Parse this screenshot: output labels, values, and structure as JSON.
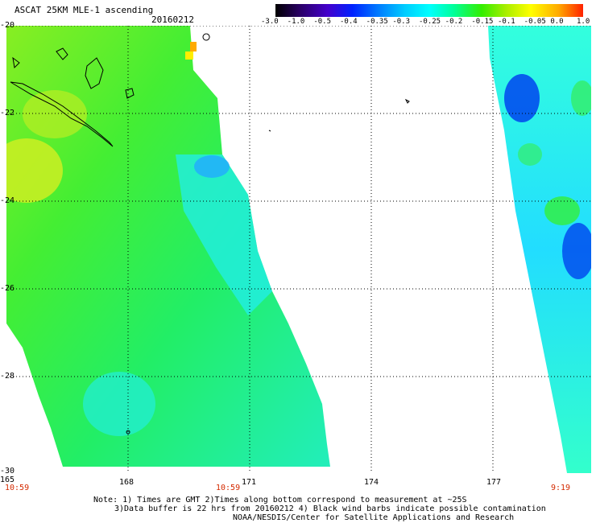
{
  "header": {
    "title": "ASCAT 25KM MLE-1 ascending",
    "date": "20160212"
  },
  "colorbar": {
    "labels": [
      "-3.0",
      "-1.0",
      "-0.5",
      "-0.4",
      "-0.35",
      "-0.3",
      "-0.25",
      "-0.2",
      "-0.15",
      "-0.1",
      "-0.05",
      "0.0",
      "1.0"
    ],
    "colors": [
      "#000000",
      "#2a0066",
      "#4400cc",
      "#0022ff",
      "#0077ff",
      "#00ccff",
      "#00ffff",
      "#00ff99",
      "#33ee00",
      "#aaee00",
      "#ffff00",
      "#ffaa00",
      "#ff2200"
    ]
  },
  "axes": {
    "lat_labels": [
      "-20",
      "-22",
      "-24",
      "-26",
      "-28",
      "-30"
    ],
    "lon_labels": [
      "165",
      "168",
      "171",
      "174",
      "177"
    ]
  },
  "times": {
    "left": "10:59",
    "center": "10:59",
    "right": "9:19"
  },
  "notes": {
    "line1": "Note: 1) Times are GMT 2)Times along bottom correspond to measurement at ~25S",
    "line2": "3)Data buffer is 22 hrs from 20160212 4) Black wind barbs indicate possible contamination",
    "line3": "NOAA/NESDIS/Center for Satellite Applications and Research"
  }
}
